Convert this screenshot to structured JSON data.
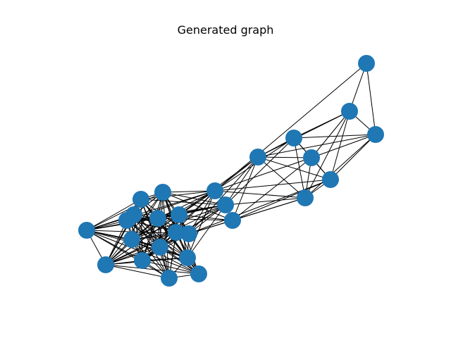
{
  "title": "Generated graph",
  "colors": {
    "node_fill": "#1f77b4",
    "edge_stroke": "#000000",
    "background": "#ffffff"
  },
  "graph": {
    "node_count": 27,
    "edges": [
      [
        0,
        1
      ],
      [
        0,
        2
      ],
      [
        1,
        2
      ],
      [
        0,
        9
      ],
      [
        1,
        3
      ],
      [
        1,
        4
      ],
      [
        1,
        5
      ],
      [
        1,
        7
      ],
      [
        2,
        4
      ],
      [
        2,
        3
      ],
      [
        2,
        6
      ],
      [
        2,
        5
      ],
      [
        3,
        4
      ],
      [
        3,
        5
      ],
      [
        3,
        6
      ],
      [
        3,
        7
      ],
      [
        3,
        9
      ],
      [
        4,
        5
      ],
      [
        4,
        6
      ],
      [
        4,
        7
      ],
      [
        4,
        8
      ],
      [
        5,
        6
      ],
      [
        5,
        7
      ],
      [
        5,
        8
      ],
      [
        5,
        11
      ],
      [
        6,
        7
      ],
      [
        6,
        8
      ],
      [
        6,
        11
      ],
      [
        7,
        8
      ],
      [
        7,
        9
      ],
      [
        7,
        10
      ],
      [
        8,
        11
      ],
      [
        8,
        15
      ],
      [
        9,
        10
      ],
      [
        9,
        11
      ],
      [
        9,
        12
      ],
      [
        9,
        13
      ],
      [
        9,
        14
      ],
      [
        9,
        15
      ],
      [
        9,
        16
      ],
      [
        9,
        17
      ],
      [
        9,
        18
      ],
      [
        10,
        11
      ],
      [
        10,
        12
      ],
      [
        10,
        13
      ],
      [
        10,
        14
      ],
      [
        10,
        15
      ],
      [
        10,
        16
      ],
      [
        10,
        17
      ],
      [
        10,
        18
      ],
      [
        10,
        19
      ],
      [
        11,
        12
      ],
      [
        11,
        13
      ],
      [
        11,
        14
      ],
      [
        11,
        15
      ],
      [
        11,
        17
      ],
      [
        11,
        18
      ],
      [
        11,
        19
      ],
      [
        11,
        22
      ],
      [
        12,
        13
      ],
      [
        12,
        15
      ],
      [
        12,
        16
      ],
      [
        12,
        17
      ],
      [
        12,
        18
      ],
      [
        12,
        20
      ],
      [
        13,
        14
      ],
      [
        13,
        15
      ],
      [
        13,
        16
      ],
      [
        13,
        17
      ],
      [
        13,
        18
      ],
      [
        13,
        19
      ],
      [
        13,
        20
      ],
      [
        13,
        21
      ],
      [
        14,
        15
      ],
      [
        14,
        16
      ],
      [
        14,
        17
      ],
      [
        14,
        18
      ],
      [
        14,
        19
      ],
      [
        14,
        20
      ],
      [
        14,
        21
      ],
      [
        14,
        24
      ],
      [
        15,
        16
      ],
      [
        15,
        17
      ],
      [
        15,
        18
      ],
      [
        15,
        19
      ],
      [
        15,
        20
      ],
      [
        15,
        21
      ],
      [
        15,
        22
      ],
      [
        15,
        23
      ],
      [
        16,
        17
      ],
      [
        16,
        18
      ],
      [
        16,
        19
      ],
      [
        16,
        20
      ],
      [
        16,
        21
      ],
      [
        16,
        22
      ],
      [
        16,
        23
      ],
      [
        16,
        24
      ],
      [
        16,
        25
      ],
      [
        17,
        18
      ],
      [
        17,
        19
      ],
      [
        17,
        20
      ],
      [
        17,
        21
      ],
      [
        17,
        22
      ],
      [
        17,
        23
      ],
      [
        17,
        24
      ],
      [
        17,
        25
      ],
      [
        18,
        19
      ],
      [
        18,
        20
      ],
      [
        18,
        21
      ],
      [
        18,
        22
      ],
      [
        18,
        23
      ],
      [
        18,
        24
      ],
      [
        18,
        25
      ],
      [
        18,
        26
      ],
      [
        19,
        20
      ],
      [
        19,
        21
      ],
      [
        19,
        22
      ],
      [
        19,
        23
      ],
      [
        19,
        24
      ],
      [
        19,
        25
      ],
      [
        19,
        26
      ],
      [
        20,
        21
      ],
      [
        20,
        22
      ],
      [
        20,
        23
      ],
      [
        20,
        24
      ],
      [
        20,
        25
      ],
      [
        20,
        26
      ],
      [
        21,
        22
      ],
      [
        21,
        23
      ],
      [
        21,
        24
      ],
      [
        21,
        25
      ],
      [
        21,
        26
      ],
      [
        22,
        23
      ],
      [
        22,
        24
      ],
      [
        22,
        25
      ],
      [
        22,
        26
      ],
      [
        23,
        24
      ],
      [
        23,
        25
      ],
      [
        23,
        26
      ],
      [
        24,
        25
      ],
      [
        24,
        26
      ],
      [
        25,
        26
      ],
      [
        9,
        19
      ],
      [
        9,
        20
      ],
      [
        9,
        21
      ],
      [
        10,
        20
      ],
      [
        10,
        21
      ],
      [
        11,
        20
      ],
      [
        11,
        21
      ],
      [
        12,
        19
      ],
      [
        12,
        21
      ],
      [
        12,
        22
      ],
      [
        12,
        23
      ],
      [
        13,
        22
      ],
      [
        13,
        23
      ],
      [
        14,
        22
      ],
      [
        14,
        23
      ],
      [
        14,
        25
      ],
      [
        15,
        24
      ],
      [
        15,
        25
      ],
      [
        15,
        26
      ],
      [
        8,
        10
      ],
      [
        8,
        12
      ],
      [
        6,
        10
      ],
      [
        5,
        9
      ],
      [
        7,
        11
      ],
      [
        4,
        9
      ],
      [
        2,
        7
      ],
      [
        1,
        6
      ],
      [
        3,
        10
      ],
      [
        7,
        12
      ],
      [
        8,
        13
      ],
      [
        6,
        9
      ],
      [
        11,
        16
      ],
      [
        9,
        22
      ],
      [
        10,
        22
      ],
      [
        12,
        24
      ],
      [
        13,
        24
      ],
      [
        13,
        25
      ],
      [
        13,
        26
      ],
      [
        12,
        25
      ],
      [
        12,
        26
      ]
    ]
  }
}
